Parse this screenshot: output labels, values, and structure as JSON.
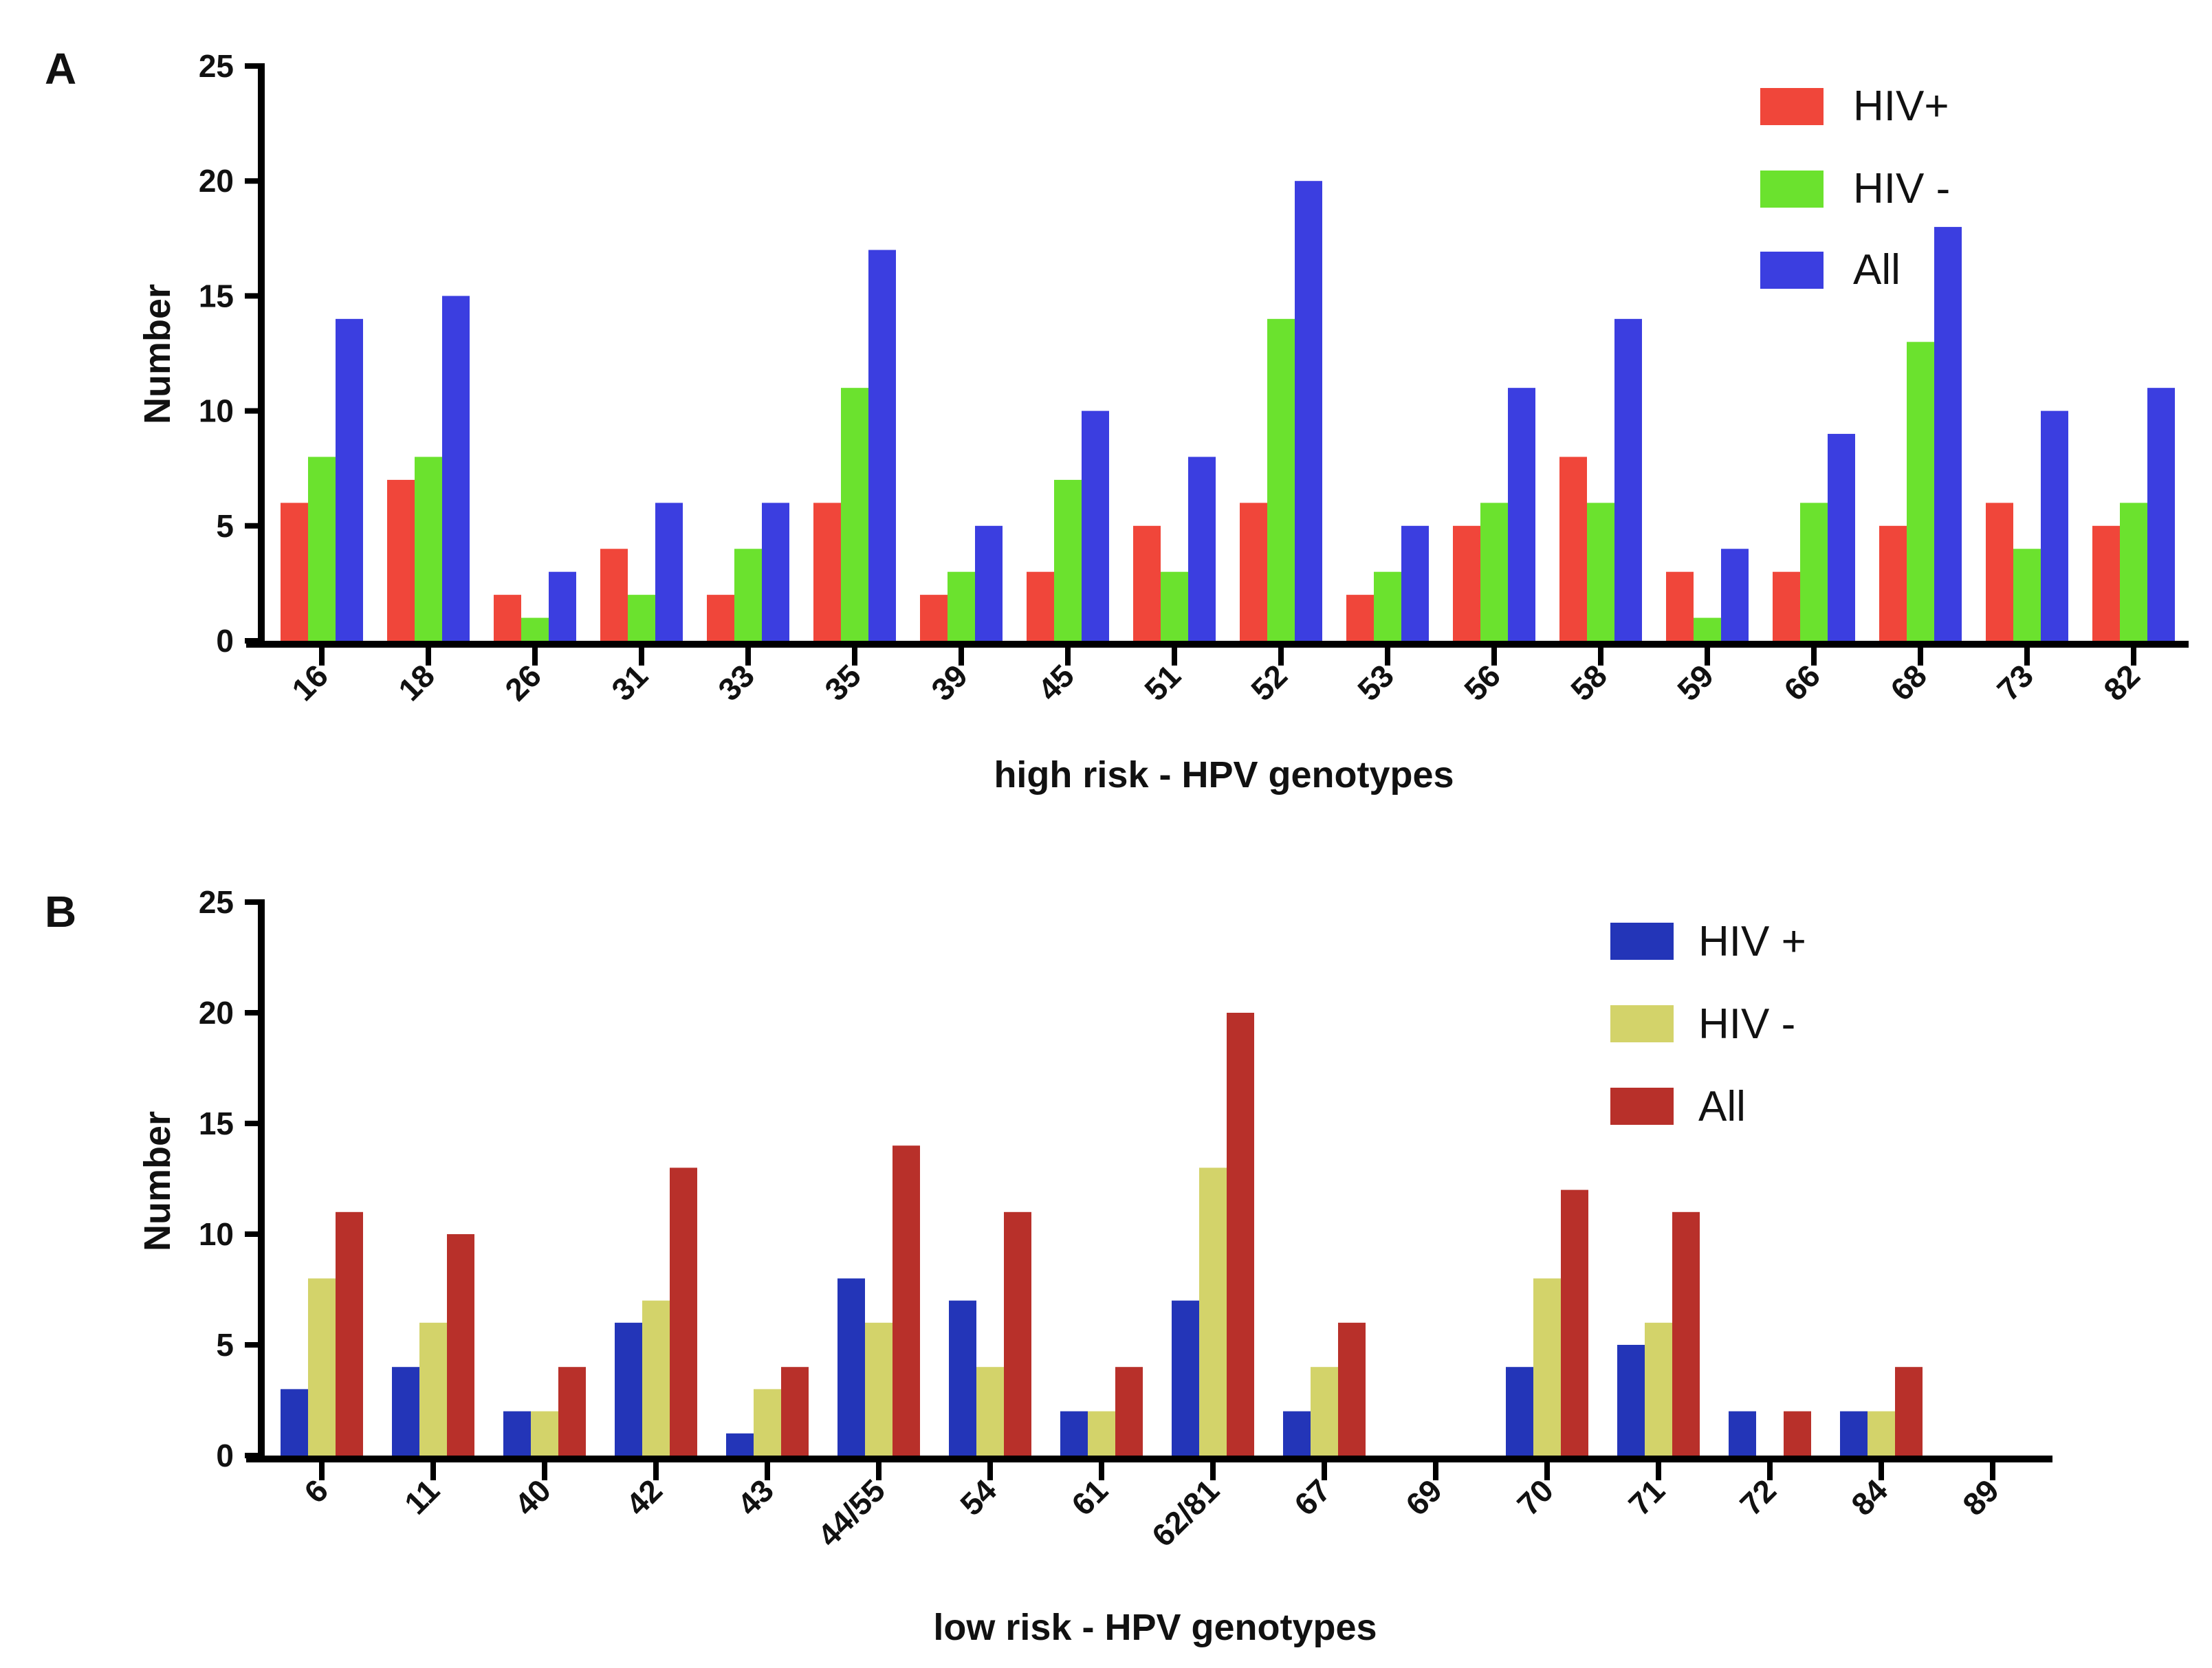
{
  "chart_data": [
    {
      "panel": "A",
      "type": "bar",
      "xlabel": "high risk - HPV genotypes",
      "ylabel": "Number",
      "ylim": [
        0,
        25
      ],
      "yticks": [
        "0",
        "5",
        "10",
        "15",
        "20",
        "25"
      ],
      "categories": [
        "16",
        "18",
        "26",
        "31",
        "33",
        "35",
        "39",
        "45",
        "51",
        "52",
        "53",
        "56",
        "58",
        "59",
        "66",
        "68",
        "73",
        "82"
      ],
      "series": [
        {
          "name": "HIV+",
          "color": "#f0463a",
          "values": [
            6,
            7,
            2,
            4,
            2,
            6,
            2,
            3,
            5,
            6,
            2,
            5,
            8,
            3,
            3,
            5,
            6,
            5
          ]
        },
        {
          "name": "HIV -",
          "color": "#6be22e",
          "values": [
            8,
            8,
            1,
            2,
            4,
            11,
            3,
            7,
            3,
            14,
            3,
            6,
            6,
            1,
            6,
            13,
            4,
            6
          ]
        },
        {
          "name": "All",
          "color": "#3b3ee0",
          "values": [
            14,
            15,
            3,
            6,
            6,
            17,
            5,
            10,
            8,
            20,
            5,
            11,
            14,
            4,
            9,
            18,
            10,
            11
          ]
        }
      ],
      "legend_position": "top-right"
    },
    {
      "panel": "B",
      "type": "bar",
      "xlabel": "low risk - HPV genotypes",
      "ylabel": "Number",
      "ylim": [
        0,
        25
      ],
      "yticks": [
        "0",
        "5",
        "10",
        "15",
        "20",
        "25"
      ],
      "categories": [
        "6",
        "11",
        "40",
        "42",
        "43",
        "44/55",
        "54",
        "61",
        "62/81",
        "67",
        "69",
        "70",
        "71",
        "72",
        "84",
        "89"
      ],
      "series": [
        {
          "name": "HIV +",
          "color": "#2335b8",
          "values": [
            3,
            4,
            2,
            6,
            1,
            8,
            7,
            2,
            7,
            2,
            0,
            4,
            5,
            2,
            2,
            0
          ]
        },
        {
          "name": "HIV -",
          "color": "#d3d36a",
          "values": [
            8,
            6,
            2,
            7,
            3,
            6,
            4,
            2,
            13,
            4,
            0,
            8,
            6,
            0,
            2,
            0
          ]
        },
        {
          "name": "All",
          "color": "#b8302a",
          "values": [
            11,
            10,
            4,
            13,
            4,
            14,
            11,
            4,
            20,
            6,
            0,
            12,
            11,
            2,
            4,
            0
          ]
        }
      ],
      "legend_position": "top-right"
    }
  ]
}
